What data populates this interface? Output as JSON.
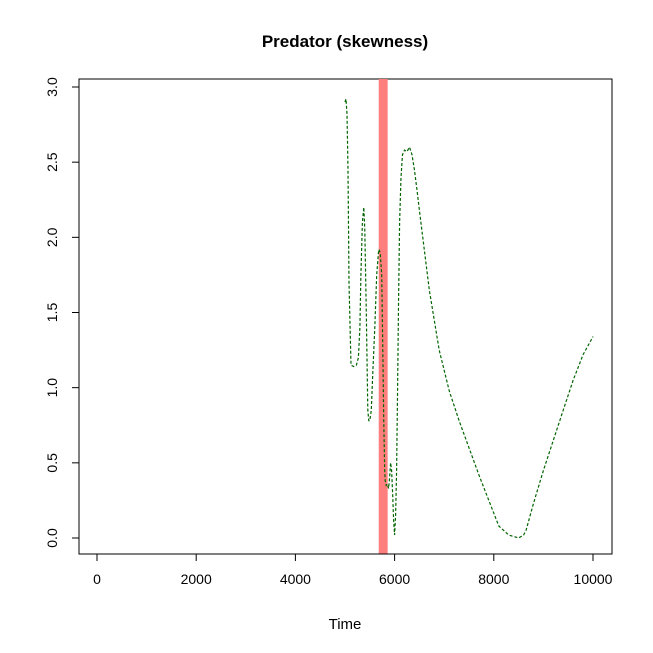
{
  "chart_data": {
    "type": "line",
    "title": "Predator (skewness)",
    "xlabel": "Time",
    "ylabel": "",
    "xlim": [
      0,
      10000
    ],
    "ylim": [
      0,
      3.0
    ],
    "x_ticks": [
      "0",
      "2000",
      "4000",
      "6000",
      "8000",
      "10000"
    ],
    "y_ticks": [
      "0.0",
      "0.5",
      "1.0",
      "1.5",
      "2.0",
      "2.5",
      "3.0"
    ],
    "line_color": "#006400",
    "highlight_band": {
      "x_start": 5680,
      "x_end": 5860,
      "color": "#ff7f7f"
    },
    "series": [
      {
        "x": [
          5000,
          5020,
          5040,
          5060,
          5080,
          5120,
          5180,
          5230,
          5270,
          5300,
          5320,
          5350,
          5380,
          5400,
          5430,
          5460,
          5480,
          5500,
          5530,
          5560,
          5600,
          5640,
          5680,
          5710,
          5740,
          5760,
          5780,
          5800,
          5810,
          5830,
          5850,
          5880,
          5900,
          5920,
          5940,
          5960,
          5980,
          6000,
          6020,
          6040,
          6060,
          6080,
          6100,
          6130,
          6160,
          6200,
          6250,
          6300,
          6350,
          6400,
          6450,
          6500,
          6700,
          6900,
          7100,
          7300,
          7500,
          7700,
          7900,
          8100,
          8300,
          8500,
          8600,
          8650,
          8800,
          9000,
          9200,
          9400,
          9600,
          9800,
          10000
        ],
        "y": [
          2.9,
          2.92,
          2.82,
          2.45,
          1.7,
          1.15,
          1.14,
          1.15,
          1.2,
          1.4,
          1.75,
          2.1,
          2.2,
          2.05,
          1.5,
          0.85,
          0.78,
          0.78,
          0.85,
          1.1,
          1.4,
          1.75,
          1.92,
          1.9,
          1.75,
          1.3,
          0.8,
          0.45,
          0.38,
          0.35,
          0.36,
          0.33,
          0.4,
          0.5,
          0.45,
          0.3,
          0.12,
          0.02,
          0.15,
          0.45,
          1.0,
          1.6,
          2.1,
          2.4,
          2.55,
          2.58,
          2.57,
          2.6,
          2.55,
          2.45,
          2.32,
          2.18,
          1.65,
          1.25,
          0.98,
          0.78,
          0.6,
          0.42,
          0.25,
          0.08,
          0.02,
          0.0,
          0.02,
          0.05,
          0.23,
          0.45,
          0.65,
          0.85,
          1.05,
          1.22,
          1.34
        ]
      }
    ]
  }
}
